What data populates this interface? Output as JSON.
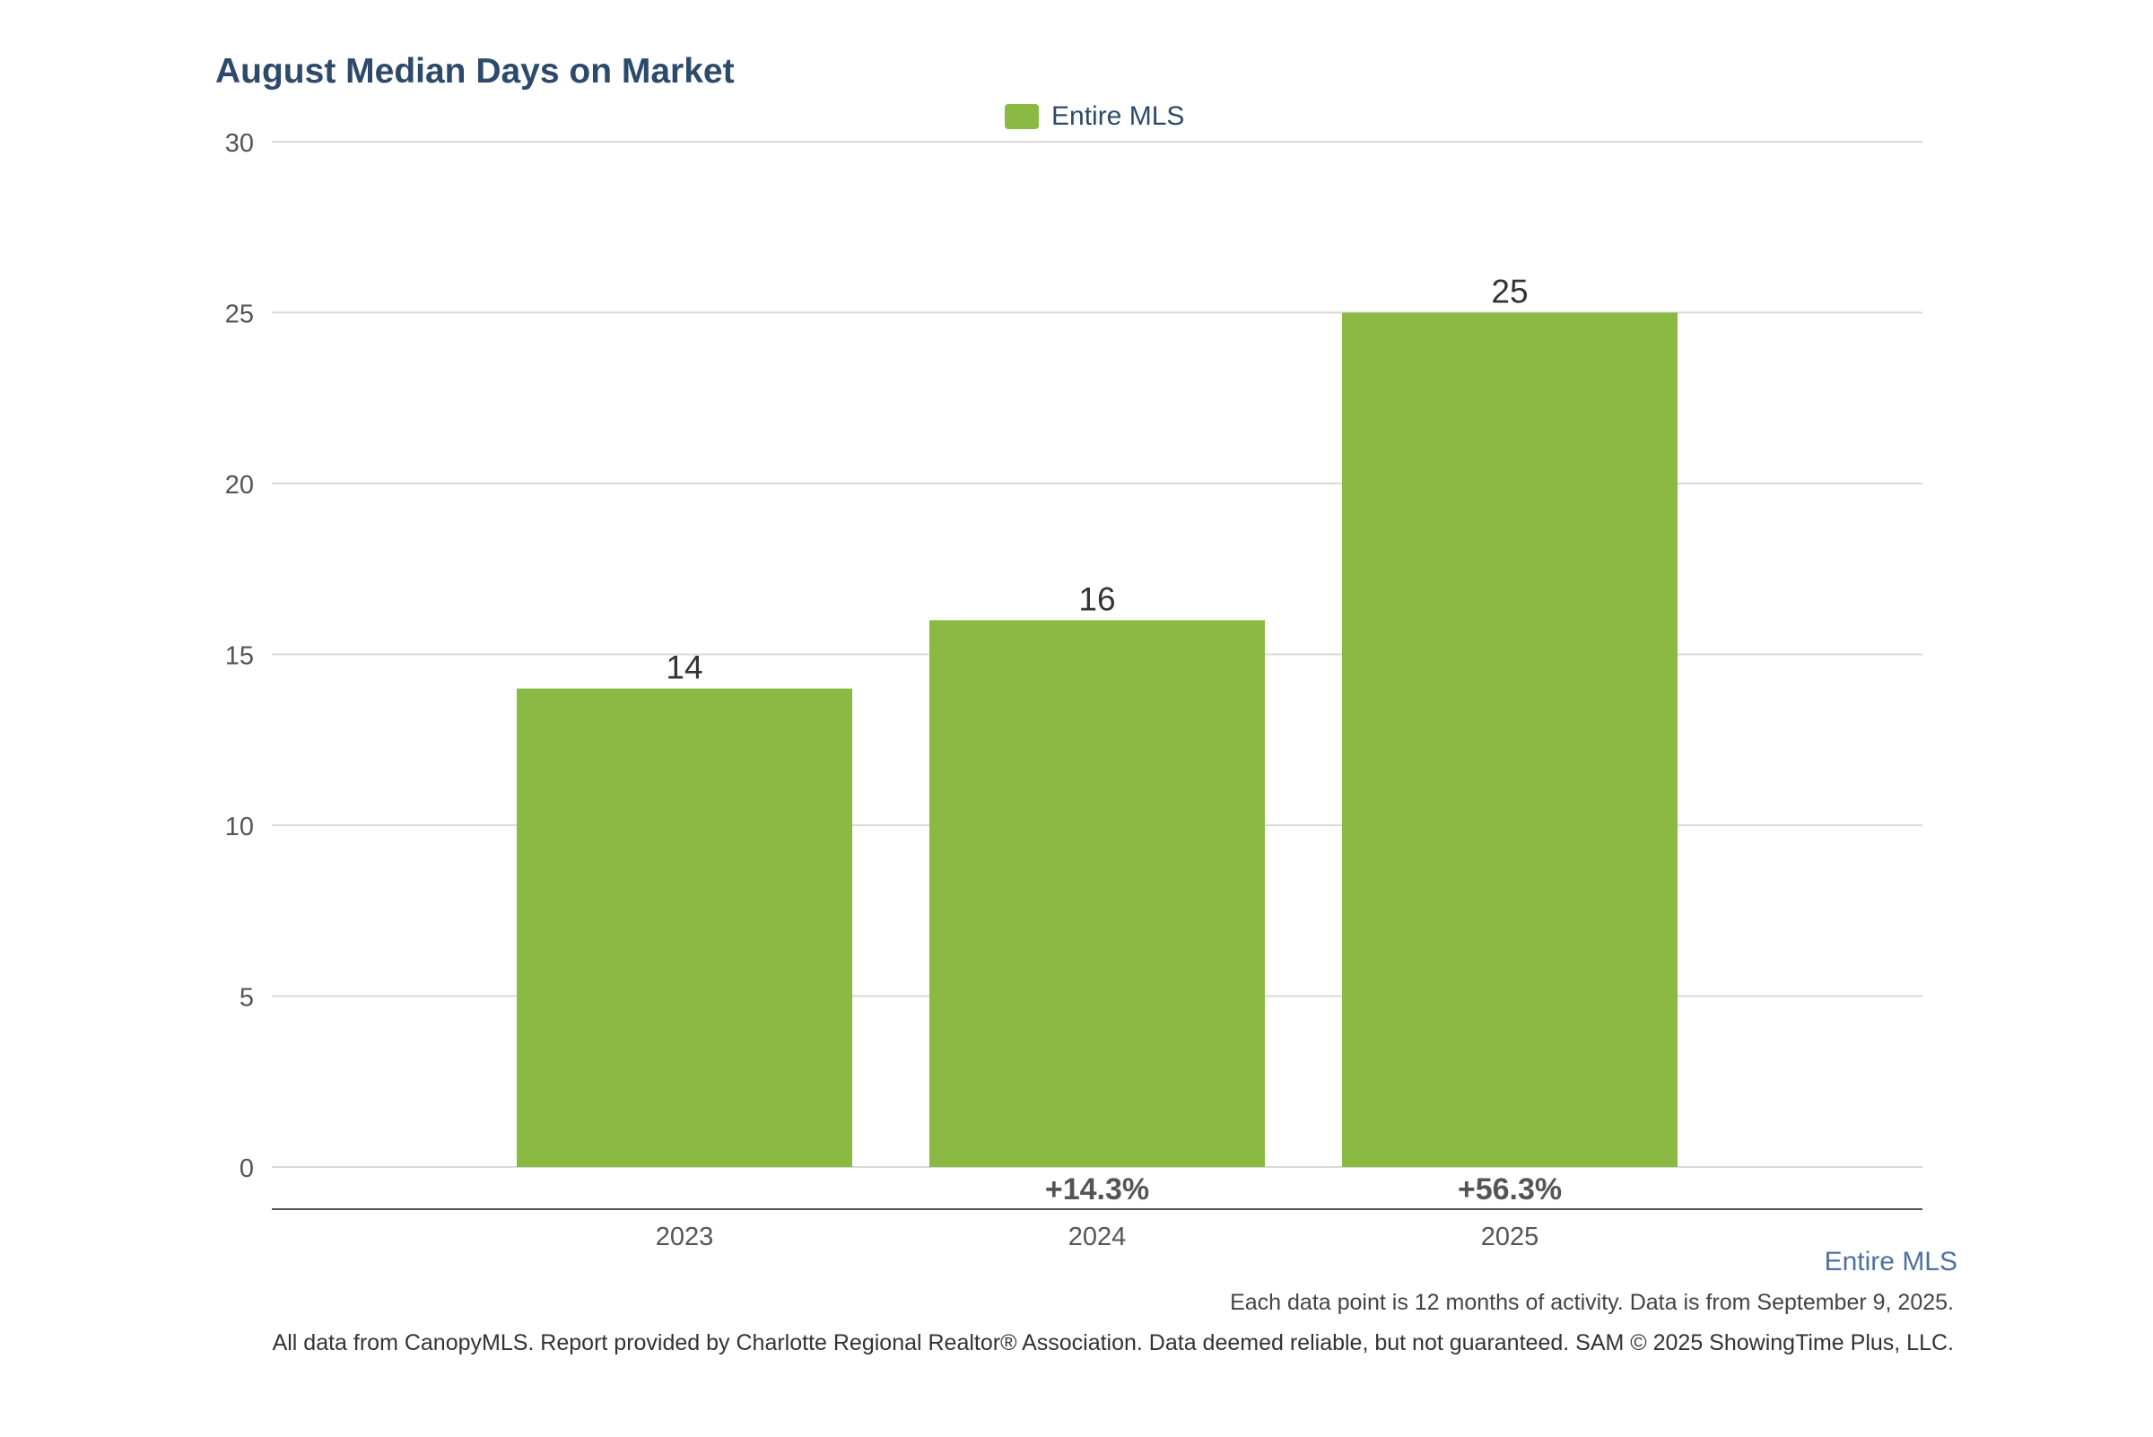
{
  "chart_data": {
    "type": "bar",
    "title": "August Median Days on Market",
    "xlabel": "",
    "ylabel": "",
    "categories": [
      "2023",
      "2024",
      "2025"
    ],
    "series": [
      {
        "name": "Entire MLS",
        "values": [
          14,
          16,
          25
        ],
        "color": "#8aba43"
      }
    ],
    "data_labels": [
      "14",
      "16",
      "25"
    ],
    "change_labels": [
      "",
      "+14.3%",
      "+56.3%"
    ],
    "ylim": [
      0,
      30
    ],
    "yticks": [
      0,
      5,
      10,
      15,
      20,
      25,
      30
    ],
    "grid": true,
    "legend_position": "top-center"
  },
  "footer": {
    "series_caption": "Entire MLS",
    "note": "Each data point is 12 months of activity. Data is from September 9, 2025.",
    "source": "All data from CanopyMLS. Report provided by Charlotte Regional Realtor® Association. Data deemed reliable, but not guaranteed. SAM © 2025 ShowingTime Plus, LLC."
  },
  "colors": {
    "title": "#2d4a6b",
    "bar": "#8aba43",
    "grid": "#d9d9d9",
    "axis": "#555555",
    "tick_text": "#555555",
    "value_text": "#333333",
    "change_text": "#555555",
    "caption": "#4e72a0"
  }
}
